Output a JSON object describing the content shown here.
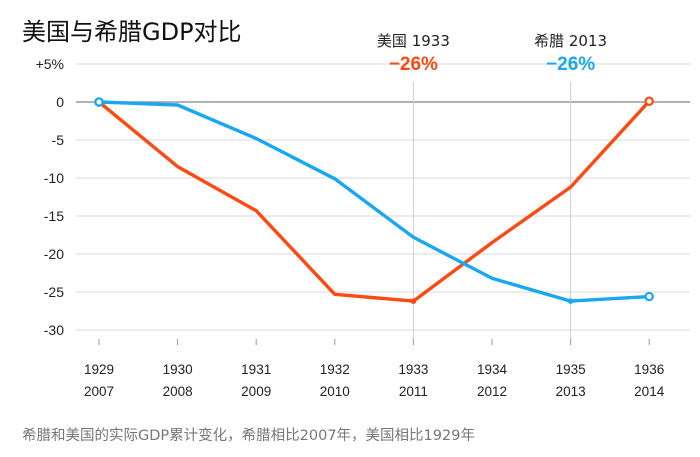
{
  "chart_data": {
    "type": "line",
    "title": "美国与希腊GDP对比",
    "caption": "希腊和美国的实际GDP累计变化，希腊相比2007年，美国相比1929年",
    "y_tick_labels": [
      "+5%",
      "0",
      "-5",
      "-10",
      "-15",
      "-20",
      "-25",
      "-30"
    ],
    "y_tick_values": [
      5,
      0,
      -5,
      -10,
      -15,
      -20,
      -25,
      -30
    ],
    "ylim": [
      -30,
      5
    ],
    "x_categories_top": [
      "1929",
      "1930",
      "1931",
      "1932",
      "1933",
      "1934",
      "1935",
      "1936"
    ],
    "x_categories_bottom": [
      "2007",
      "2008",
      "2009",
      "2010",
      "2011",
      "2012",
      "2013",
      "2014"
    ],
    "series": [
      {
        "name": "美国",
        "color": "#ff4a14",
        "values": [
          0,
          -8.5,
          -14.3,
          -25.3,
          -26.2,
          -18.5,
          -11.2,
          0.1
        ]
      },
      {
        "name": "希腊",
        "color": "#1aa7f2",
        "values": [
          0,
          -0.4,
          -4.8,
          -10.1,
          -17.8,
          -23.2,
          -26.2,
          -25.6
        ]
      }
    ],
    "annotations": [
      {
        "label": "美国 1933",
        "value": "−26%",
        "color": "#ff4a14",
        "x_index": 4
      },
      {
        "label": "希腊 2013",
        "value": "−26%",
        "color": "#1aa7f2",
        "x_index": 6
      }
    ],
    "grid": true,
    "legend": "none"
  }
}
